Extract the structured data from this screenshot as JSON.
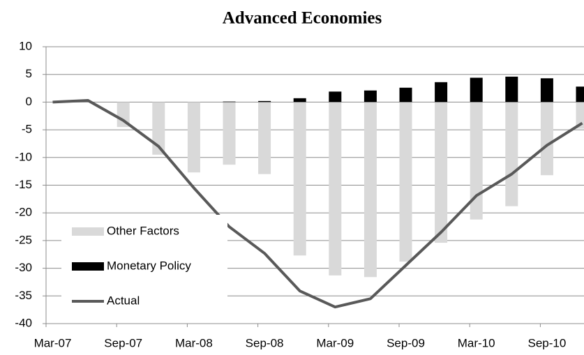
{
  "chart_data": {
    "type": "bar-line",
    "title": "Advanced Economies",
    "categories": [
      "Mar-07",
      null,
      "Sep-07",
      null,
      "Mar-08",
      null,
      "Sep-08",
      null,
      "Mar-09",
      null,
      "Sep-09",
      null,
      "Mar-10",
      null,
      "Sep-10",
      null
    ],
    "series": [
      {
        "name": "Other Factors",
        "type": "bar",
        "color": "#d9d9d9",
        "values": [
          0,
          0,
          -4.5,
          -9.5,
          -12.7,
          -11.3,
          -13,
          -27.7,
          -31.3,
          -31.6,
          -28.8,
          -25.4,
          -21.2,
          -18.8,
          -13.2,
          -4.8
        ]
      },
      {
        "name": "Monetary Policy",
        "type": "bar",
        "color": "#000000",
        "values": [
          0,
          0,
          0,
          0,
          0,
          0.1,
          0.2,
          0.7,
          1.9,
          2.1,
          2.6,
          3.6,
          4.4,
          4.6,
          4.3,
          2.8
        ]
      },
      {
        "name": "Actual",
        "type": "line",
        "color": "#595959",
        "values": [
          0,
          0.3,
          -3.3,
          -8,
          -15.5,
          -22.5,
          -27.3,
          -34.1,
          -37,
          -35.5,
          -29.5,
          -23.5,
          -16.9,
          -13,
          -7.8,
          -3.8
        ]
      }
    ],
    "ylim": [
      -40,
      10
    ],
    "yticks": [
      -40,
      -35,
      -30,
      -25,
      -20,
      -15,
      -10,
      -5,
      0,
      5,
      10
    ],
    "grid": true
  }
}
